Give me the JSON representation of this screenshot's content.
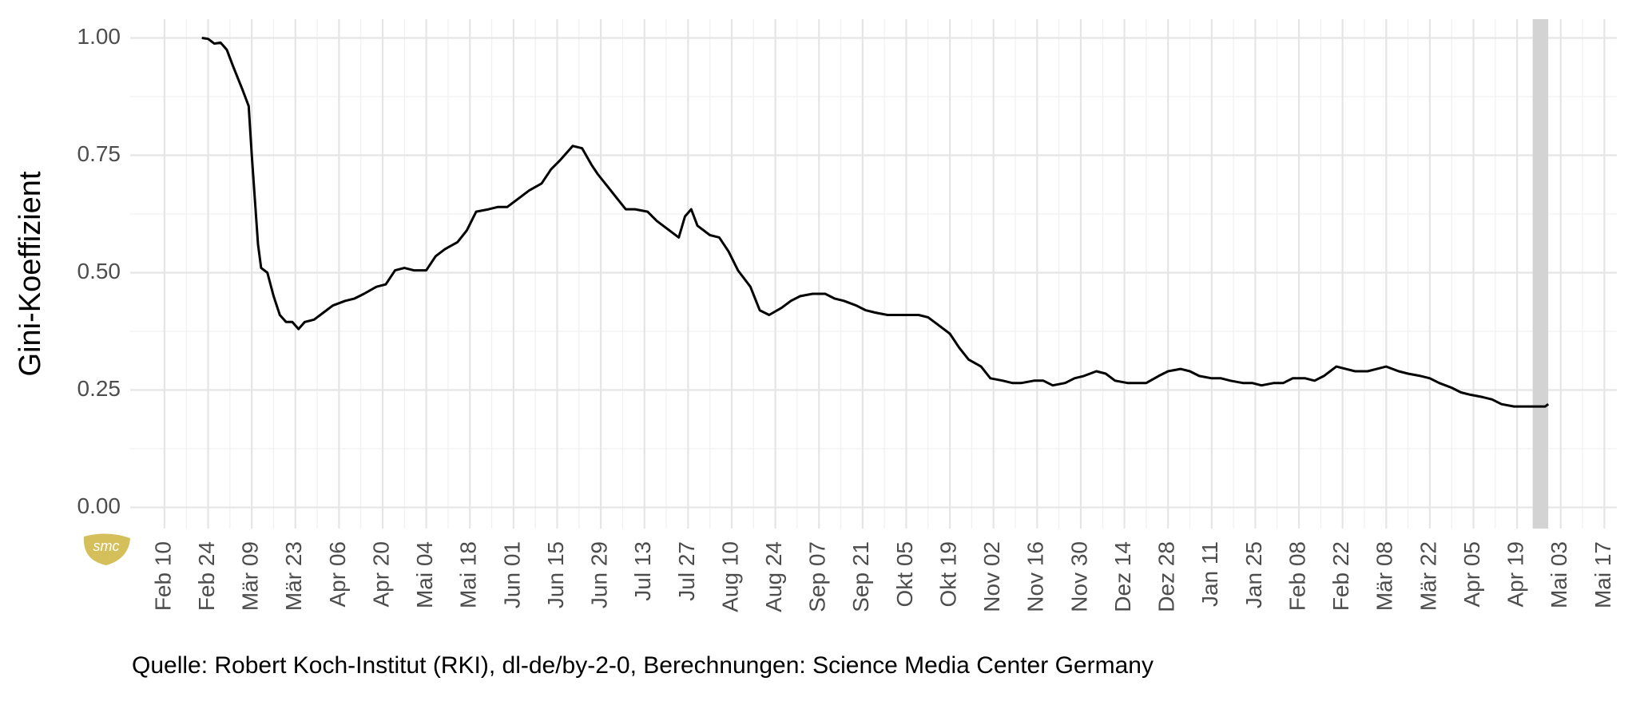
{
  "chart_data": {
    "type": "line",
    "y_label": "Gini-Koeffizient",
    "source": "Quelle: Robert Koch-Institut (RKI), dl-de/by-2-0, Berechnungen: Science Media Center Germany",
    "logo": "smc",
    "x": [
      12,
      14,
      16,
      18,
      20,
      22,
      25,
      27,
      28,
      30,
      31,
      33,
      35,
      37,
      39,
      41,
      43,
      45,
      48,
      51,
      54,
      58,
      61,
      64,
      68,
      71,
      74,
      77,
      80,
      84,
      87,
      90,
      94,
      97,
      100,
      104,
      107,
      110,
      114,
      117,
      121,
      124,
      127,
      131,
      134,
      137,
      139,
      142,
      145,
      148,
      151,
      155,
      158,
      161,
      165,
      167,
      169,
      171,
      175,
      178,
      181,
      184,
      188,
      191,
      194,
      198,
      201,
      204,
      208,
      212,
      215,
      218,
      222,
      225,
      228,
      232,
      235,
      238,
      242,
      245,
      248,
      252,
      255,
      258,
      262,
      265,
      269,
      272,
      275,
      279,
      282,
      285,
      289,
      292,
      295,
      299,
      302,
      305,
      309,
      312,
      315,
      319,
      322,
      326,
      329,
      332,
      336,
      339,
      342,
      346,
      349,
      352,
      356,
      359,
      362,
      366,
      369,
      372,
      376,
      379,
      382,
      386,
      389,
      392,
      396,
      399,
      403,
      406,
      409,
      413,
      416,
      419,
      423,
      426,
      429,
      433,
      436,
      439,
      443,
      444
    ],
    "series": [
      {
        "name": "Gini-Koeffizient",
        "color": "#000000",
        "values": [
          1.0,
          0.998,
          0.988,
          0.99,
          0.975,
          0.94,
          0.89,
          0.855,
          0.75,
          0.56,
          0.51,
          0.5,
          0.45,
          0.41,
          0.395,
          0.395,
          0.38,
          0.395,
          0.4,
          0.415,
          0.43,
          0.44,
          0.445,
          0.455,
          0.47,
          0.475,
          0.505,
          0.51,
          0.505,
          0.505,
          0.535,
          0.55,
          0.565,
          0.59,
          0.63,
          0.635,
          0.64,
          0.64,
          0.66,
          0.675,
          0.69,
          0.72,
          0.74,
          0.77,
          0.765,
          0.73,
          0.71,
          0.685,
          0.66,
          0.635,
          0.635,
          0.63,
          0.61,
          0.595,
          0.575,
          0.62,
          0.635,
          0.6,
          0.58,
          0.575,
          0.545,
          0.505,
          0.47,
          0.42,
          0.41,
          0.425,
          0.44,
          0.45,
          0.455,
          0.455,
          0.445,
          0.44,
          0.43,
          0.42,
          0.415,
          0.41,
          0.41,
          0.41,
          0.41,
          0.405,
          0.39,
          0.37,
          0.34,
          0.315,
          0.3,
          0.275,
          0.27,
          0.265,
          0.265,
          0.27,
          0.27,
          0.26,
          0.265,
          0.275,
          0.28,
          0.29,
          0.285,
          0.27,
          0.265,
          0.265,
          0.265,
          0.28,
          0.29,
          0.295,
          0.29,
          0.28,
          0.275,
          0.275,
          0.27,
          0.265,
          0.265,
          0.26,
          0.265,
          0.265,
          0.275,
          0.275,
          0.27,
          0.28,
          0.3,
          0.295,
          0.29,
          0.29,
          0.295,
          0.3,
          0.29,
          0.285,
          0.28,
          0.275,
          0.265,
          0.255,
          0.245,
          0.24,
          0.235,
          0.23,
          0.22,
          0.215,
          0.215,
          0.215,
          0.215,
          0.22
        ]
      }
    ],
    "shade": [
      439,
      444
    ],
    "shade_color": "#d3d3d3",
    "xlim": [
      -11,
      466
    ],
    "xticks": [
      {
        "value": 0,
        "label": "Feb 10"
      },
      {
        "value": 14,
        "label": "Feb 24"
      },
      {
        "value": 28,
        "label": "Mär 09"
      },
      {
        "value": 42,
        "label": "Mär 23"
      },
      {
        "value": 56,
        "label": "Apr 06"
      },
      {
        "value": 70,
        "label": "Apr 20"
      },
      {
        "value": 84,
        "label": "Mai 04"
      },
      {
        "value": 98,
        "label": "Mai 18"
      },
      {
        "value": 112,
        "label": "Jun 01"
      },
      {
        "value": 126,
        "label": "Jun 15"
      },
      {
        "value": 140,
        "label": "Jun 29"
      },
      {
        "value": 154,
        "label": "Jul 13"
      },
      {
        "value": 168,
        "label": "Jul 27"
      },
      {
        "value": 182,
        "label": "Aug 10"
      },
      {
        "value": 196,
        "label": "Aug 24"
      },
      {
        "value": 210,
        "label": "Sep 07"
      },
      {
        "value": 224,
        "label": "Sep 21"
      },
      {
        "value": 238,
        "label": "Okt 05"
      },
      {
        "value": 252,
        "label": "Okt 19"
      },
      {
        "value": 266,
        "label": "Nov 02"
      },
      {
        "value": 280,
        "label": "Nov 16"
      },
      {
        "value": 294,
        "label": "Nov 30"
      },
      {
        "value": 308,
        "label": "Dez 14"
      },
      {
        "value": 322,
        "label": "Dez 28"
      },
      {
        "value": 336,
        "label": "Jan 11"
      },
      {
        "value": 350,
        "label": "Jan 25"
      },
      {
        "value": 364,
        "label": "Feb 08"
      },
      {
        "value": 378,
        "label": "Feb 22"
      },
      {
        "value": 392,
        "label": "Mär 08"
      },
      {
        "value": 406,
        "label": "Mär 22"
      },
      {
        "value": 420,
        "label": "Apr 05"
      },
      {
        "value": 434,
        "label": "Apr 19"
      },
      {
        "value": 448,
        "label": "Mai 03"
      },
      {
        "value": 462,
        "label": "Mai 17"
      }
    ],
    "ylim": [
      -0.045,
      1.04
    ],
    "yticks": [
      {
        "value": 0,
        "label": "0.00"
      },
      {
        "value": 0.25,
        "label": "0.25"
      },
      {
        "value": 0.5,
        "label": "0.50"
      },
      {
        "value": 0.75,
        "label": "0.75"
      },
      {
        "value": 1,
        "label": "1.00"
      }
    ],
    "grid": true
  }
}
